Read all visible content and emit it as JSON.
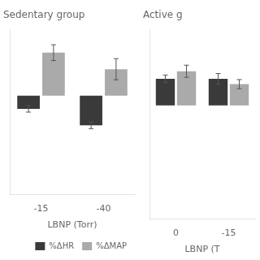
{
  "chart_data": [
    {
      "type": "bar",
      "title": "Sedentary group",
      "xlabel": "LBNP (Torr)",
      "categories": [
        "-15",
        "-40"
      ],
      "series": [
        {
          "name": "%ΔHR",
          "color": "#3a3a3a",
          "values": [
            -2.0,
            -4.5
          ],
          "errors": [
            0.5,
            0.5
          ]
        },
        {
          "name": "%ΔMAP",
          "color": "#aaaaaa",
          "values": [
            6.5,
            4.0
          ],
          "errors": [
            1.2,
            1.6
          ]
        }
      ],
      "ylim": [
        -15,
        10
      ],
      "grid": false,
      "tick_labels": "x",
      "legend": "lower right"
    },
    {
      "type": "bar",
      "title": "Active g",
      "xlabel": "LBNP (T",
      "categories": [
        "0",
        "-15"
      ],
      "series": [
        {
          "name": "%ΔHR",
          "color": "#3a3a3a",
          "values": [
            3.5,
            3.5
          ],
          "errors": [
            0.5,
            0.7
          ]
        },
        {
          "name": "%ΔMAP",
          "color": "#aaaaaa",
          "values": [
            4.5,
            2.8
          ],
          "errors": [
            0.8,
            0.6
          ]
        }
      ],
      "ylim": [
        -15,
        10
      ],
      "grid": false,
      "tick_labels": "x"
    }
  ]
}
